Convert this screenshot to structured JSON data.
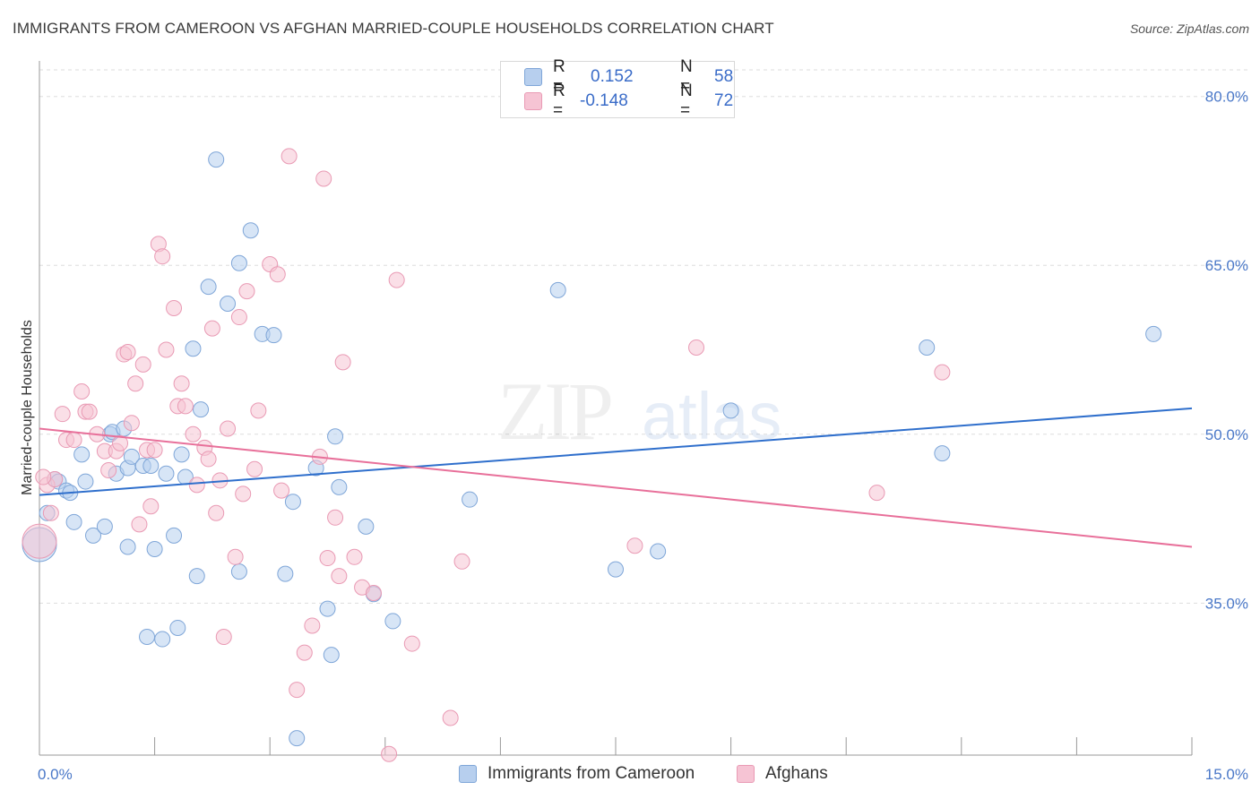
{
  "title": "IMMIGRANTS FROM CAMEROON VS AFGHAN MARRIED-COUPLE HOUSEHOLDS CORRELATION CHART",
  "source": "Source: ZipAtlas.com",
  "watermark": {
    "zip": "ZIP",
    "atlas": "atlas"
  },
  "legend_top": {
    "rows": [
      {
        "r_label": "R =",
        "r_value": "0.152",
        "n_label": "N =",
        "n_value": "58"
      },
      {
        "r_label": "R =",
        "r_value": "-0.148",
        "n_label": "N =",
        "n_value": "72"
      }
    ]
  },
  "legend_bottom": {
    "items": [
      "Immigrants from Cameroon",
      "Afghans"
    ]
  },
  "colors": {
    "blue_fill": "#b7cfee",
    "blue_stroke": "#7fa6d8",
    "blue_line": "#2f6fcc",
    "pink_fill": "#f6c4d4",
    "pink_stroke": "#e99ab4",
    "pink_line": "#e8709a",
    "tick_text": "#4a78c8",
    "grid": "#dddddd"
  },
  "chart_data": {
    "type": "scatter",
    "title": "IMMIGRANTS FROM CAMEROON VS AFGHAN MARRIED-COUPLE HOUSEHOLDS CORRELATION CHART",
    "xlabel": "",
    "ylabel": "Married-couple Households",
    "xlim": [
      0,
      15
    ],
    "ylim": [
      21.5,
      83
    ],
    "x_tick_labels": [
      "0.0%",
      "15.0%"
    ],
    "y_ticks": [
      80,
      65,
      50,
      35
    ],
    "y_tick_labels": [
      "80.0%",
      "65.0%",
      "50.0%",
      "35.0%"
    ],
    "grid": true,
    "legend_position": "top-center",
    "series": [
      {
        "name": "Immigrants from Cameroon",
        "color": "#b7cfee",
        "trend": {
          "x": [
            0,
            15
          ],
          "y": [
            44.6,
            52.3
          ]
        },
        "points": [
          [
            0.0,
            40.2
          ],
          [
            0.1,
            43.0
          ],
          [
            0.2,
            46.0
          ],
          [
            0.25,
            45.8
          ],
          [
            0.35,
            45.0
          ],
          [
            0.4,
            44.8
          ],
          [
            0.45,
            42.2
          ],
          [
            0.55,
            48.2
          ],
          [
            0.6,
            45.8
          ],
          [
            0.7,
            41.0
          ],
          [
            0.85,
            41.8
          ],
          [
            0.92,
            50.0
          ],
          [
            0.95,
            50.2
          ],
          [
            1.0,
            46.5
          ],
          [
            1.1,
            50.5
          ],
          [
            1.15,
            47.0
          ],
          [
            1.15,
            40.0
          ],
          [
            1.2,
            48.0
          ],
          [
            1.35,
            47.2
          ],
          [
            1.4,
            32.0
          ],
          [
            1.45,
            47.2
          ],
          [
            1.5,
            39.8
          ],
          [
            1.6,
            31.8
          ],
          [
            1.65,
            46.5
          ],
          [
            1.75,
            41.0
          ],
          [
            1.8,
            32.8
          ],
          [
            1.85,
            48.2
          ],
          [
            1.9,
            46.2
          ],
          [
            2.0,
            57.6
          ],
          [
            2.05,
            37.4
          ],
          [
            2.1,
            52.2
          ],
          [
            2.2,
            63.1
          ],
          [
            2.3,
            74.4
          ],
          [
            2.45,
            61.6
          ],
          [
            2.6,
            65.2
          ],
          [
            2.6,
            37.8
          ],
          [
            2.75,
            68.1
          ],
          [
            2.9,
            58.9
          ],
          [
            3.05,
            58.8
          ],
          [
            3.2,
            37.6
          ],
          [
            3.3,
            44.0
          ],
          [
            3.35,
            23.0
          ],
          [
            3.6,
            47.0
          ],
          [
            3.75,
            34.5
          ],
          [
            3.8,
            30.4
          ],
          [
            3.85,
            49.8
          ],
          [
            3.9,
            45.3
          ],
          [
            4.25,
            41.8
          ],
          [
            4.35,
            35.8
          ],
          [
            4.6,
            33.4
          ],
          [
            5.6,
            44.2
          ],
          [
            6.75,
            62.8
          ],
          [
            7.5,
            38.0
          ],
          [
            8.05,
            39.6
          ],
          [
            9.0,
            52.1
          ],
          [
            11.55,
            57.7
          ],
          [
            11.75,
            48.3
          ],
          [
            14.5,
            58.9
          ]
        ]
      },
      {
        "name": "Afghans",
        "color": "#f6c4d4",
        "trend": {
          "x": [
            0,
            15
          ],
          "y": [
            50.5,
            40.0
          ]
        },
        "points": [
          [
            0.0,
            40.5
          ],
          [
            0.1,
            45.5
          ],
          [
            0.15,
            43.0
          ],
          [
            0.2,
            46.0
          ],
          [
            0.3,
            51.8
          ],
          [
            0.35,
            49.5
          ],
          [
            0.45,
            49.5
          ],
          [
            0.55,
            53.8
          ],
          [
            0.6,
            52.0
          ],
          [
            0.65,
            52.0
          ],
          [
            0.75,
            50.0
          ],
          [
            0.85,
            48.5
          ],
          [
            0.9,
            46.8
          ],
          [
            1.0,
            48.5
          ],
          [
            1.05,
            49.2
          ],
          [
            1.1,
            57.1
          ],
          [
            1.15,
            57.3
          ],
          [
            1.2,
            51.0
          ],
          [
            1.25,
            54.5
          ],
          [
            1.3,
            42.0
          ],
          [
            1.35,
            56.2
          ],
          [
            1.4,
            48.6
          ],
          [
            1.45,
            43.6
          ],
          [
            1.5,
            48.6
          ],
          [
            1.55,
            66.9
          ],
          [
            1.6,
            65.8
          ],
          [
            1.65,
            57.5
          ],
          [
            1.75,
            61.2
          ],
          [
            1.8,
            52.5
          ],
          [
            1.85,
            54.5
          ],
          [
            1.9,
            52.5
          ],
          [
            2.0,
            50.0
          ],
          [
            2.05,
            45.5
          ],
          [
            2.15,
            48.8
          ],
          [
            2.2,
            47.8
          ],
          [
            2.25,
            59.4
          ],
          [
            2.3,
            43.0
          ],
          [
            2.35,
            45.9
          ],
          [
            2.4,
            32.0
          ],
          [
            2.45,
            50.5
          ],
          [
            2.55,
            39.1
          ],
          [
            2.6,
            60.4
          ],
          [
            2.65,
            44.7
          ],
          [
            2.7,
            62.7
          ],
          [
            2.8,
            46.9
          ],
          [
            2.85,
            52.1
          ],
          [
            3.0,
            65.1
          ],
          [
            3.1,
            64.2
          ],
          [
            3.15,
            45.0
          ],
          [
            3.25,
            74.7
          ],
          [
            3.35,
            27.3
          ],
          [
            3.45,
            30.6
          ],
          [
            3.55,
            33.0
          ],
          [
            3.65,
            48.0
          ],
          [
            3.7,
            72.7
          ],
          [
            3.75,
            39.0
          ],
          [
            3.85,
            42.6
          ],
          [
            3.9,
            37.4
          ],
          [
            3.95,
            56.4
          ],
          [
            4.1,
            39.1
          ],
          [
            4.2,
            36.4
          ],
          [
            4.35,
            35.9
          ],
          [
            4.55,
            21.6
          ],
          [
            4.65,
            63.7
          ],
          [
            4.85,
            31.4
          ],
          [
            5.35,
            24.8
          ],
          [
            5.5,
            38.7
          ],
          [
            7.75,
            40.1
          ],
          [
            8.55,
            57.7
          ],
          [
            10.9,
            44.8
          ],
          [
            11.75,
            55.5
          ],
          [
            0.05,
            46.2
          ]
        ]
      }
    ]
  }
}
